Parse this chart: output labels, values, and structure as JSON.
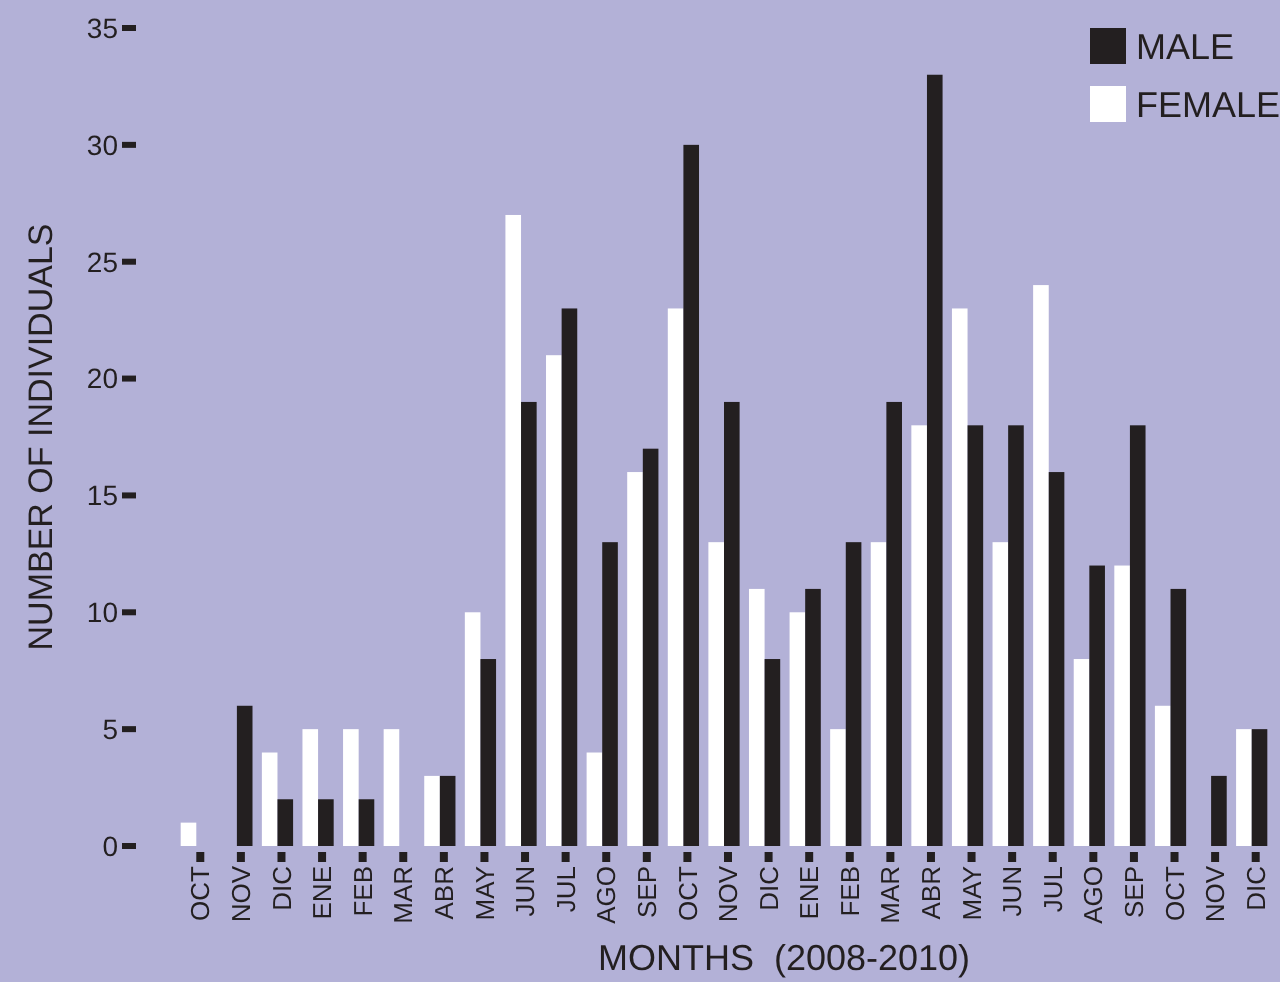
{
  "chart_data": {
    "type": "bar",
    "xlabel": "MONTHS  (2008-2010)",
    "ylabel": "NUMBER OF INDIVIDUALS",
    "categories": [
      "OCT",
      "NOV",
      "DIC",
      "ENE",
      "FEB",
      "MAR",
      "ABR",
      "MAY",
      "JUN",
      "JUL",
      "AGO",
      "SEP",
      "OCT",
      "NOV",
      "DIC",
      "ENE",
      "FEB",
      "MAR",
      "ABR",
      "MAY",
      "JUN",
      "JUL",
      "AGO",
      "SEP",
      "OCT",
      "NOV",
      "DIC"
    ],
    "series": [
      {
        "name": "FEMALE",
        "color": "#ffffff",
        "values": [
          1,
          0,
          4,
          5,
          5,
          5,
          3,
          10,
          27,
          21,
          4,
          16,
          23,
          13,
          11,
          10,
          5,
          13,
          18,
          23,
          13,
          24,
          8,
          12,
          6,
          0,
          5
        ]
      },
      {
        "name": "MALE",
        "color": "#231f20",
        "values": [
          0,
          6,
          2,
          2,
          2,
          0,
          3,
          8,
          19,
          23,
          13,
          17,
          30,
          19,
          8,
          11,
          13,
          19,
          33,
          18,
          18,
          16,
          12,
          18,
          11,
          3,
          5
        ]
      }
    ],
    "ylim": [
      0,
      35
    ],
    "yticks": [
      0,
      5,
      10,
      15,
      20,
      25,
      30,
      35
    ],
    "grid": false,
    "legend": "top right"
  }
}
